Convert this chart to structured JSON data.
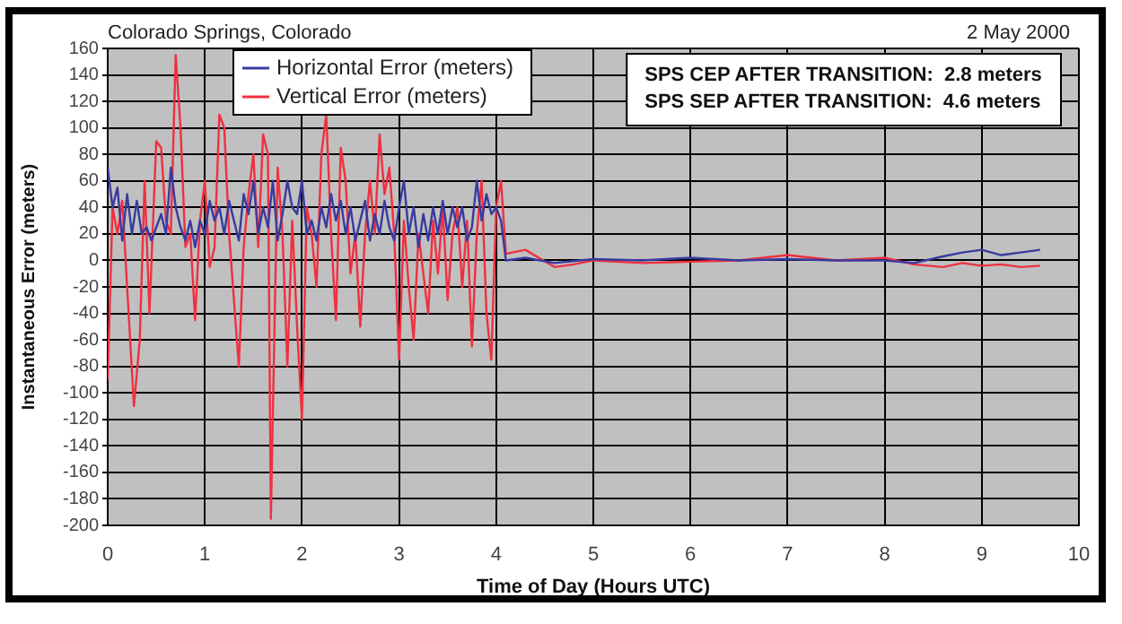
{
  "chart_data": {
    "type": "line",
    "title": "Colorado Springs, Colorado",
    "subtitle": "2 May 2000",
    "xlabel": "Time of Day (Hours UTC)",
    "ylabel": "Instantaneous Error (meters)",
    "annotations": [
      "SPS CEP AFTER TRANSITION:  2.8 meters",
      "SPS SEP AFTER TRANSITION:  4.6 meters"
    ],
    "xlim": [
      0,
      10
    ],
    "xticks": [
      0,
      1,
      2,
      3,
      4,
      5,
      6,
      7,
      8,
      9,
      10
    ],
    "ylim": [
      -200,
      160
    ],
    "yticks": [
      -200,
      -180,
      -160,
      -140,
      -120,
      -100,
      -80,
      -60,
      -40,
      -20,
      0,
      20,
      40,
      60,
      80,
      100,
      120,
      140,
      160
    ],
    "grid": true,
    "legend": "top left",
    "marker": "none",
    "line_style": "solid",
    "series": [
      {
        "name": "Horizontal Error (meters)",
        "color": "#3a3aa0",
        "x": [
          0,
          0.05,
          0.1,
          0.15,
          0.2,
          0.25,
          0.3,
          0.35,
          0.4,
          0.45,
          0.5,
          0.55,
          0.6,
          0.65,
          0.7,
          0.75,
          0.8,
          0.85,
          0.9,
          0.95,
          1,
          1.05,
          1.1,
          1.15,
          1.2,
          1.25,
          1.3,
          1.35,
          1.4,
          1.45,
          1.5,
          1.55,
          1.6,
          1.65,
          1.7,
          1.75,
          1.8,
          1.85,
          1.9,
          1.95,
          2,
          2.05,
          2.1,
          2.15,
          2.2,
          2.25,
          2.3,
          2.35,
          2.4,
          2.45,
          2.5,
          2.55,
          2.6,
          2.65,
          2.7,
          2.75,
          2.8,
          2.85,
          2.9,
          2.95,
          3,
          3.05,
          3.1,
          3.15,
          3.2,
          3.25,
          3.3,
          3.35,
          3.4,
          3.45,
          3.5,
          3.55,
          3.6,
          3.65,
          3.7,
          3.75,
          3.8,
          3.85,
          3.9,
          3.95,
          4,
          4.05,
          4.1,
          4.3,
          4.6,
          5,
          5.5,
          6,
          6.5,
          7,
          7.5,
          8,
          8.3,
          8.6,
          8.8,
          9,
          9.2,
          9.4,
          9.6
        ],
        "values": [
          70,
          40,
          55,
          15,
          50,
          20,
          45,
          20,
          25,
          15,
          25,
          35,
          20,
          70,
          40,
          25,
          15,
          30,
          10,
          30,
          20,
          45,
          30,
          40,
          20,
          45,
          30,
          15,
          50,
          35,
          60,
          20,
          40,
          25,
          60,
          15,
          35,
          60,
          40,
          35,
          60,
          20,
          30,
          15,
          40,
          25,
          50,
          30,
          45,
          20,
          40,
          15,
          30,
          45,
          15,
          35,
          20,
          45,
          25,
          15,
          40,
          60,
          20,
          40,
          10,
          35,
          15,
          40,
          20,
          45,
          20,
          40,
          25,
          40,
          15,
          25,
          60,
          30,
          50,
          35,
          40,
          30,
          0,
          2,
          -2,
          1,
          0,
          2,
          0,
          1,
          0,
          0,
          -2,
          3,
          6,
          8,
          4,
          6,
          8
        ]
      },
      {
        "name": "Vertical Error (meters)",
        "color": "#f03040",
        "x": [
          0,
          0.05,
          0.1,
          0.15,
          0.2,
          0.27,
          0.33,
          0.38,
          0.43,
          0.5,
          0.55,
          0.6,
          0.65,
          0.7,
          0.75,
          0.8,
          0.85,
          0.9,
          0.95,
          1,
          1.05,
          1.1,
          1.15,
          1.2,
          1.25,
          1.3,
          1.35,
          1.4,
          1.45,
          1.5,
          1.55,
          1.6,
          1.65,
          1.68,
          1.72,
          1.75,
          1.8,
          1.85,
          1.9,
          1.95,
          2,
          2.05,
          2.1,
          2.15,
          2.2,
          2.25,
          2.3,
          2.35,
          2.4,
          2.45,
          2.5,
          2.55,
          2.6,
          2.65,
          2.7,
          2.75,
          2.8,
          2.85,
          2.9,
          2.95,
          3,
          3.05,
          3.1,
          3.15,
          3.2,
          3.3,
          3.35,
          3.4,
          3.45,
          3.5,
          3.55,
          3.6,
          3.65,
          3.7,
          3.75,
          3.8,
          3.85,
          3.9,
          3.95,
          4,
          4.05,
          4.1,
          4.3,
          4.6,
          4.8,
          5,
          5.5,
          6,
          6.5,
          7,
          7.5,
          8,
          8.3,
          8.6,
          8.8,
          9,
          9.2,
          9.4,
          9.6
        ],
        "values": [
          -90,
          40,
          20,
          45,
          -20,
          -110,
          -60,
          60,
          -40,
          90,
          85,
          30,
          20,
          155,
          100,
          10,
          20,
          -45,
          30,
          60,
          -5,
          10,
          110,
          100,
          20,
          -30,
          -80,
          10,
          50,
          80,
          10,
          95,
          80,
          -195,
          -40,
          70,
          20,
          -80,
          30,
          -50,
          -120,
          40,
          20,
          -20,
          80,
          110,
          20,
          -45,
          85,
          60,
          -10,
          20,
          -50,
          20,
          60,
          20,
          95,
          50,
          70,
          20,
          -75,
          30,
          -20,
          -60,
          20,
          -40,
          30,
          -10,
          40,
          -30,
          20,
          40,
          -20,
          30,
          -65,
          20,
          60,
          -40,
          -75,
          40,
          60,
          5,
          8,
          -5,
          -3,
          0,
          -2,
          -1,
          0,
          4,
          0,
          2,
          -3,
          -5,
          -2,
          -4,
          -3,
          -5,
          -4
        ]
      }
    ]
  }
}
